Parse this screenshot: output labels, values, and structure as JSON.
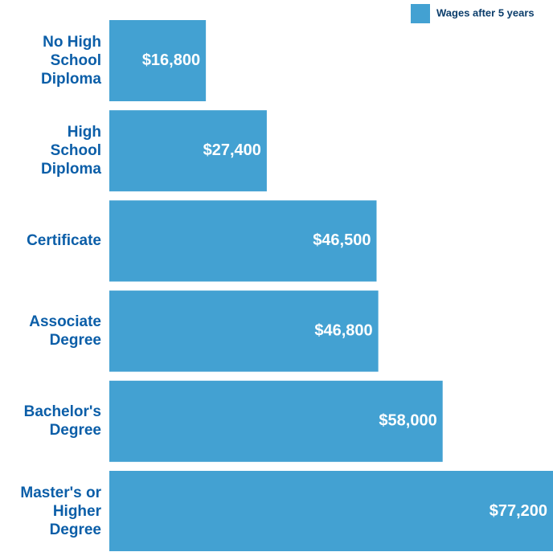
{
  "chart_data": {
    "type": "bar",
    "orientation": "horizontal",
    "categories": [
      "No High School Diploma",
      "High School Diploma",
      "Certificate",
      "Associate Degree",
      "Bachelor's Degree",
      "Master's or Higher Degree"
    ],
    "series": [
      {
        "name": "Wages after 5 years",
        "color": "#43a1d2",
        "values": [
          16800,
          27400,
          46500,
          46800,
          58000,
          77200
        ],
        "value_labels": [
          "$16,800",
          "$27,400",
          "$46,500",
          "$46,800",
          "$58,000",
          "$77,200"
        ]
      }
    ],
    "legend": "top-right"
  }
}
